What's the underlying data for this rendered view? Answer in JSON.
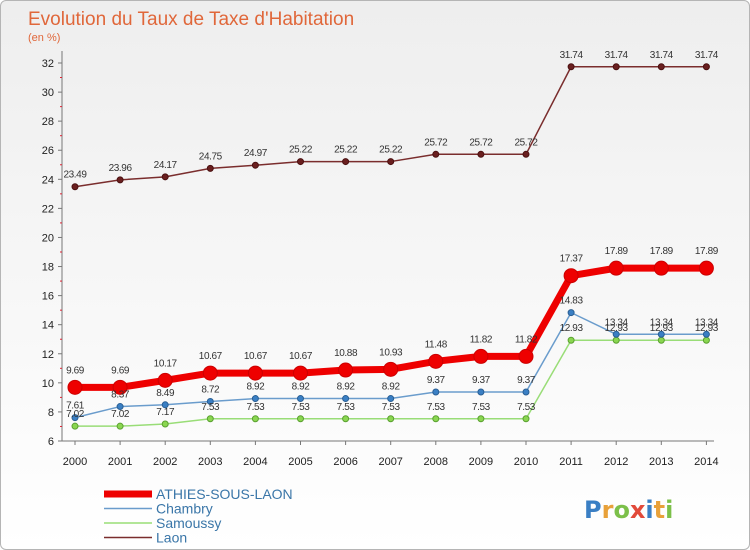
{
  "chart_data": {
    "type": "line",
    "title": "Evolution du Taux de Taxe d'Habitation",
    "subtitle": "(en %)",
    "xlabel": "",
    "ylabel": "",
    "categories": [
      "2000",
      "2001",
      "2002",
      "2003",
      "2004",
      "2005",
      "2006",
      "2007",
      "2008",
      "2009",
      "2010",
      "2011",
      "2012",
      "2013",
      "2014"
    ],
    "ylim": [
      6,
      32
    ],
    "yticks": [
      6,
      8,
      10,
      12,
      14,
      16,
      18,
      20,
      22,
      24,
      26,
      28,
      30,
      32
    ],
    "grid": false,
    "legend_position": "bottom-left",
    "series": [
      {
        "name": "ATHIES-SOUS-LAON",
        "color": "#ee0000",
        "values": [
          9.69,
          9.69,
          10.17,
          10.67,
          10.67,
          10.67,
          10.88,
          10.93,
          11.48,
          11.82,
          11.82,
          17.37,
          17.89,
          17.89,
          17.89
        ],
        "labels": [
          "9.69",
          "9.69",
          "10.17",
          "10.67",
          "10.67",
          "10.67",
          "10.88",
          "10.93",
          "11.48",
          "11.82",
          "11.82",
          "17.37",
          "17.89",
          "17.89",
          "17.89"
        ]
      },
      {
        "name": "Chambry",
        "color": "#6a9ccc",
        "values": [
          7.61,
          8.37,
          8.49,
          8.72,
          8.92,
          8.92,
          8.92,
          8.92,
          9.37,
          9.37,
          9.37,
          14.83,
          13.34,
          13.34,
          13.34
        ],
        "labels": [
          "7.61",
          "8.37",
          "8.49",
          "8.72",
          "8.92",
          "8.92",
          "8.92",
          "8.92",
          "9.37",
          "9.37",
          "9.37",
          "14.83",
          "13.34",
          "13.34",
          "13.34"
        ]
      },
      {
        "name": "Samoussy",
        "color": "#99dd77",
        "values": [
          7.02,
          7.02,
          7.17,
          7.53,
          7.53,
          7.53,
          7.53,
          7.53,
          7.53,
          7.53,
          7.53,
          12.93,
          12.93,
          12.93,
          12.93
        ],
        "labels": [
          "7.02",
          "7.02",
          "7.17",
          "7.53",
          "7.53",
          "7.53",
          "7.53",
          "7.53",
          "7.53",
          "7.53",
          "7.53",
          "12.93",
          "12.93",
          "12.93",
          "12.93"
        ]
      },
      {
        "name": "Laon",
        "color": "#7a2d2d",
        "values": [
          23.49,
          23.96,
          24.17,
          24.75,
          24.97,
          25.22,
          25.22,
          25.22,
          25.72,
          25.72,
          25.72,
          31.74,
          31.74,
          31.74,
          31.74
        ],
        "labels": [
          "23.49",
          "23.96",
          "24.17",
          "24.75",
          "24.97",
          "25.22",
          "25.22",
          "25.22",
          "25.72",
          "25.72",
          "25.72",
          "31.74",
          "31.74",
          "31.74",
          "31.74"
        ]
      }
    ]
  },
  "logo": {
    "text": "Proxiti",
    "letters": [
      "P",
      "r",
      "o",
      "x",
      "i",
      "t",
      "i"
    ],
    "colors": [
      "#3a7fc4",
      "#e8a13a",
      "#7cc04a",
      "#e24a3a",
      "#3a7fc4",
      "#e8a13a",
      "#7cc04a"
    ]
  }
}
